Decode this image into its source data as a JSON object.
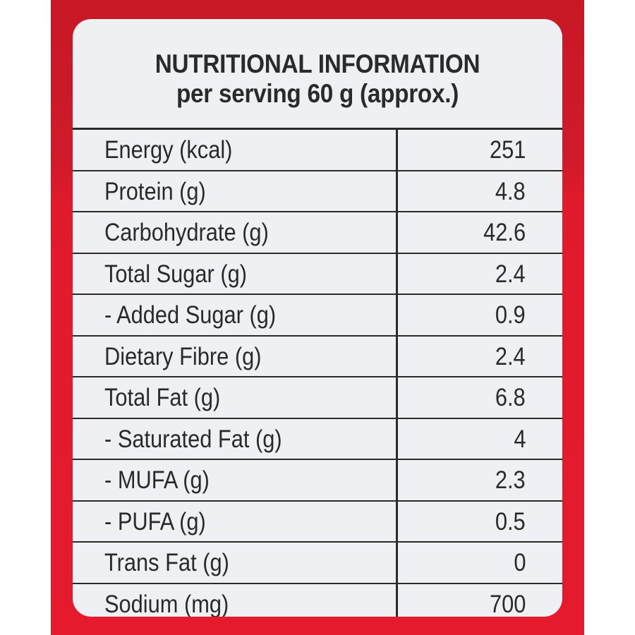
{
  "label": {
    "title": "NUTRITIONAL INFORMATION",
    "subtitle": "per serving 60 g (approx.)"
  },
  "nutrients": [
    {
      "name": "Energy (kcal)",
      "value": "251"
    },
    {
      "name": "Protein (g)",
      "value": "4.8"
    },
    {
      "name": "Carbohydrate (g)",
      "value": "42.6"
    },
    {
      "name": "Total Sugar (g)",
      "value": "2.4"
    },
    {
      "name": "- Added Sugar (g)",
      "value": "0.9"
    },
    {
      "name": "Dietary Fibre (g)",
      "value": "2.4"
    },
    {
      "name": "Total Fat (g)",
      "value": "6.8"
    },
    {
      "name": "- Saturated Fat (g)",
      "value": "4"
    },
    {
      "name": "- MUFA (g)",
      "value": "2.3"
    },
    {
      "name": "- PUFA (g)",
      "value": "0.5"
    },
    {
      "name": "Trans Fat (g)",
      "value": "0"
    },
    {
      "name": "Sodium (mg)",
      "value": "700"
    }
  ],
  "colors": {
    "packaging_red": "#e51b2d",
    "label_background": "#eef0f3",
    "text": "#2a2a2a"
  }
}
